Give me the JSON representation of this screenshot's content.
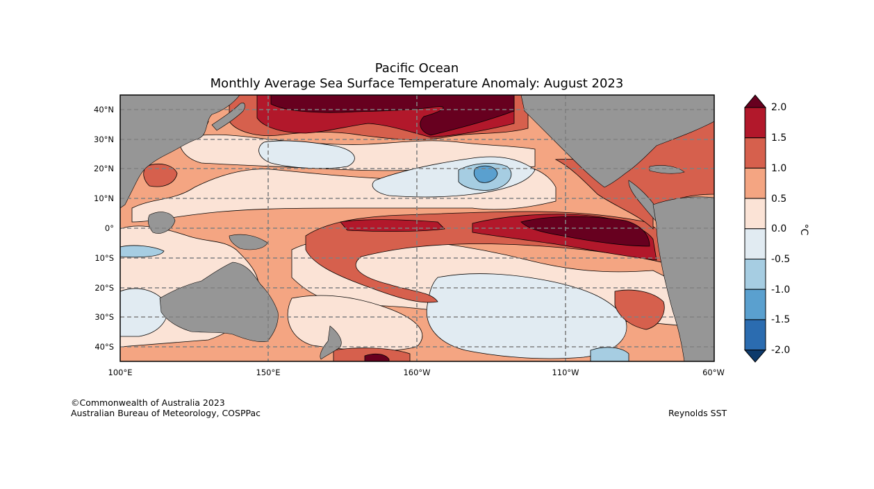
{
  "figure": {
    "title_line1": "Pacific Ocean",
    "title_line2": "Monthly Average Sea Surface Temperature Anomaly: August 2023"
  },
  "map": {
    "lat_labels": [
      "40°N",
      "30°N",
      "20°N",
      "10°N",
      "0°",
      "10°S",
      "20°S",
      "30°S",
      "40°S"
    ],
    "lon_labels": [
      "100°E",
      "150°E",
      "160°W",
      "110°W",
      "60°W"
    ],
    "land_color": "#969696",
    "gridlines": "dashed"
  },
  "colorbar": {
    "unit": "°C",
    "ticks": [
      "2.0",
      "1.5",
      "1.0",
      "0.5",
      "0.0",
      "-0.5",
      "-1.0",
      "-1.5",
      "-2.0"
    ],
    "bands": [
      {
        "range": "> 2.0",
        "color": "#67001f"
      },
      {
        "range": "1.5 to 2.0",
        "color": "#b2182b"
      },
      {
        "range": "1.0 to 1.5",
        "color": "#d6604d"
      },
      {
        "range": "0.5 to 1.0",
        "color": "#f4a582"
      },
      {
        "range": "0.0 to 0.5",
        "color": "#fbe3d6"
      },
      {
        "range": "-0.5 to 0.0",
        "color": "#e1ebf2"
      },
      {
        "range": "-1.0 to -0.5",
        "color": "#a6cde2"
      },
      {
        "range": "-1.5 to -1.0",
        "color": "#5aa0cf"
      },
      {
        "range": "-2.0 to -1.5",
        "color": "#2b6cb0"
      },
      {
        "range": "< -2.0",
        "color": "#0d3a6b"
      }
    ]
  },
  "credits": {
    "copyright": "©Commonwealth of Australia 2023",
    "organisation": "Australian Bureau of Meteorology, COSPPac",
    "source": "Reynolds SST"
  }
}
